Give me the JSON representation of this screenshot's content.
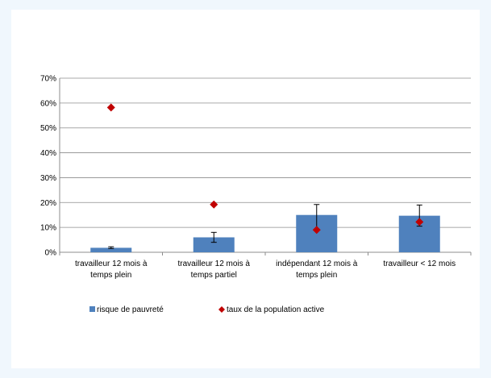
{
  "chart_data": {
    "type": "bar",
    "categories": [
      [
        "travailleur 12 mois à",
        "temps plein"
      ],
      [
        "travailleur 12 mois à",
        "temps partiel"
      ],
      [
        "indépendant 12 mois à",
        "temps plein"
      ],
      [
        "travailleur < 12 mois"
      ]
    ],
    "series": [
      {
        "name": "risque de pauvreté",
        "type": "bar",
        "color": "#4f81bd",
        "values": [
          0.018,
          0.06,
          0.15,
          0.147
        ],
        "error_low": [
          0.015,
          0.04,
          0.088,
          0.105
        ],
        "error_high": [
          0.022,
          0.08,
          0.192,
          0.19
        ]
      },
      {
        "name": "taux de la population active",
        "type": "scatter",
        "marker": "diamond",
        "color": "#c00000",
        "values": [
          0.582,
          0.192,
          0.09,
          0.122
        ]
      }
    ],
    "y_ticks": [
      "0%",
      "10%",
      "20%",
      "30%",
      "40%",
      "50%",
      "60%",
      "70%"
    ],
    "ylim": [
      0,
      0.7
    ],
    "grid": true,
    "legend": "bottom"
  }
}
